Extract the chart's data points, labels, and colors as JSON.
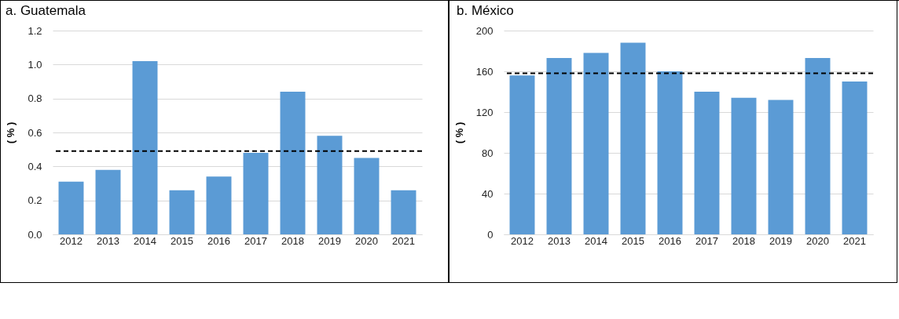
{
  "chart_data": [
    {
      "type": "bar",
      "title": "a. Guatemala",
      "ylabel": "( % )",
      "categories": [
        "2012",
        "2013",
        "2014",
        "2015",
        "2016",
        "2017",
        "2018",
        "2019",
        "2020",
        "2021"
      ],
      "values": [
        0.31,
        0.38,
        1.02,
        0.26,
        0.34,
        0.48,
        0.84,
        0.58,
        0.45,
        0.26
      ],
      "color": "#5b9bd5",
      "ylim": [
        0,
        1.2
      ],
      "yticks": [
        {
          "value": 0,
          "label": "0.0"
        },
        {
          "value": 0.2,
          "label": "0.2"
        },
        {
          "value": 0.4,
          "label": "0.4"
        },
        {
          "value": 0.6,
          "label": "0.6"
        },
        {
          "value": 0.8,
          "label": "0.8"
        },
        {
          "value": 1,
          "label": "1.0"
        },
        {
          "value": 1.2,
          "label": "1.2"
        }
      ],
      "grid": "y",
      "ref_lines": [
        {
          "axis": "y",
          "value": 0.49,
          "color": "#000000",
          "line_style": "dashed"
        }
      ]
    },
    {
      "type": "bar",
      "title": "b. México",
      "ylabel": "( % )",
      "categories": [
        "2012",
        "2013",
        "2014",
        "2015",
        "2016",
        "2017",
        "2018",
        "2019",
        "2020",
        "2021"
      ],
      "values": [
        156,
        173,
        178,
        188,
        160,
        140,
        134,
        132,
        173,
        150
      ],
      "color": "#5b9bd5",
      "ylim": [
        0,
        200
      ],
      "yticks": [
        0,
        40,
        80,
        120,
        160,
        200
      ],
      "grid": "y",
      "ref_lines": [
        {
          "axis": "y",
          "value": 158,
          "color": "#000000",
          "line_style": "dashed"
        }
      ]
    }
  ]
}
